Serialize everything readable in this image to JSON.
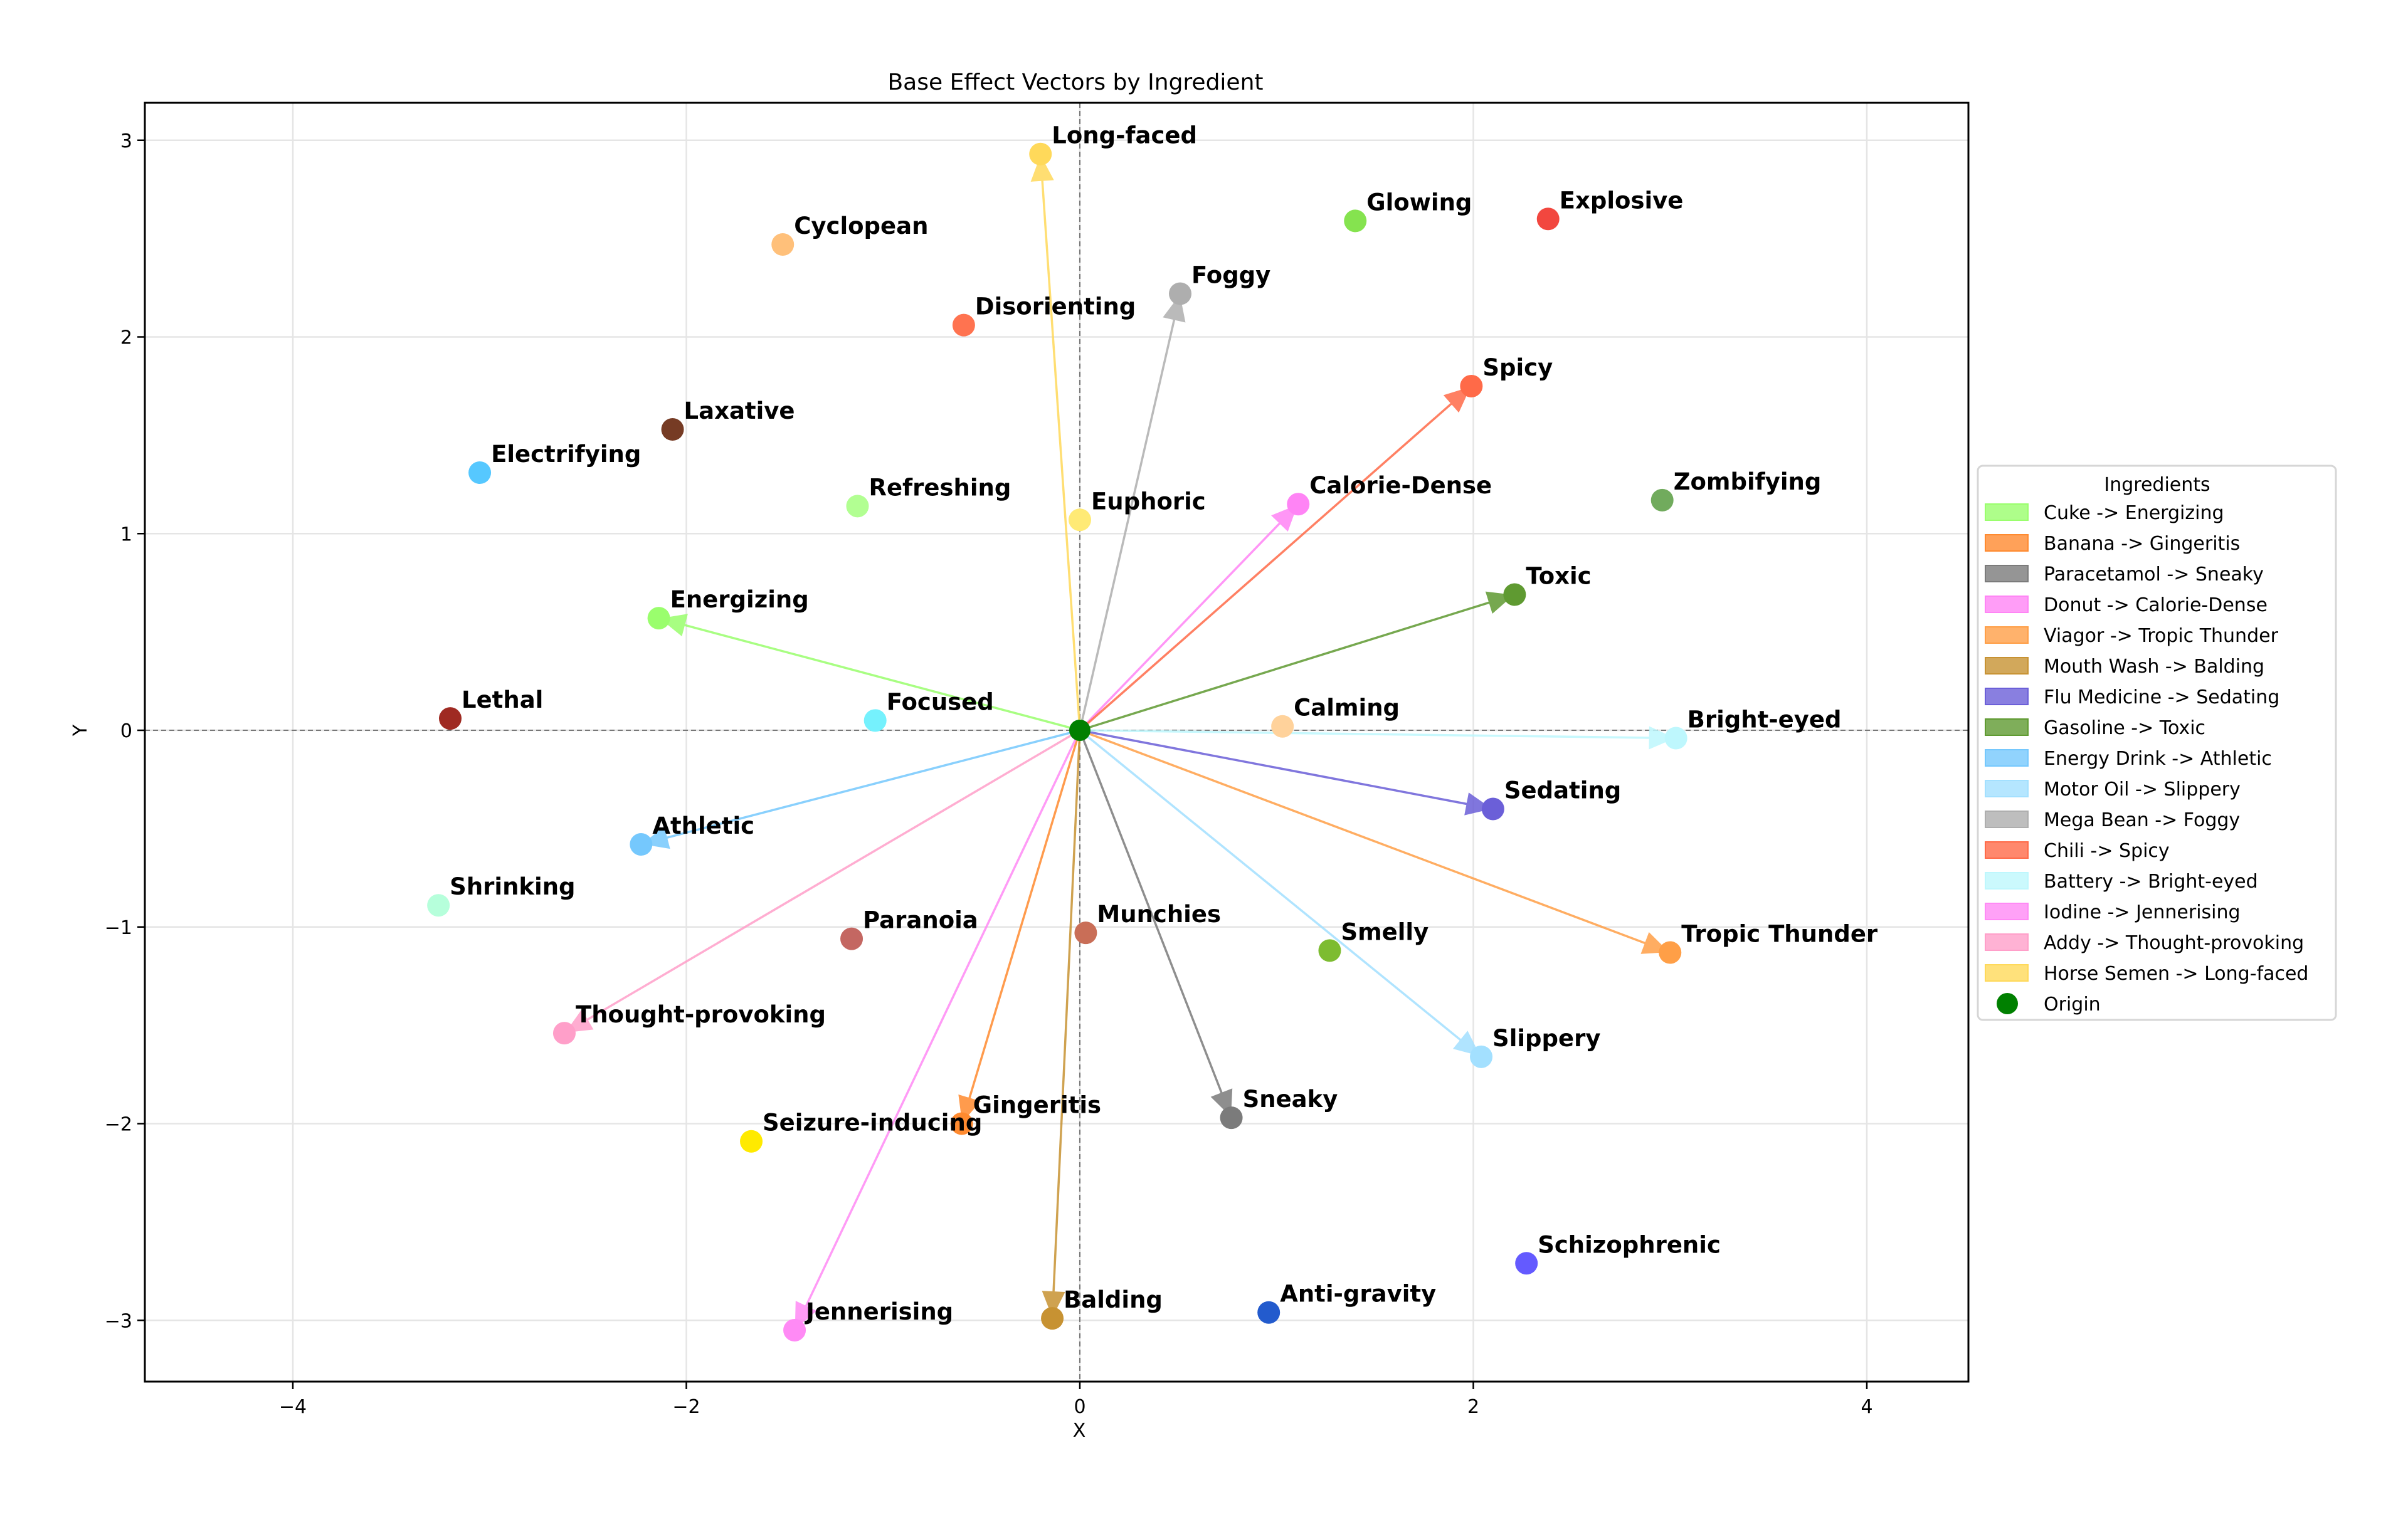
{
  "chart_data": {
    "type": "scatter",
    "title": "Base Effect Vectors by Ingredient",
    "xlabel": "X",
    "ylabel": "Y",
    "xlim": [
      -4.75,
      4.52
    ],
    "ylim": [
      -3.31,
      3.19
    ],
    "xticks": [
      -4,
      -2,
      0,
      2,
      4
    ],
    "yticks": [
      -3,
      -2,
      -1,
      0,
      1,
      2,
      3
    ],
    "grid": true,
    "legend_title": "Ingredients",
    "legend_position": "right, outside plot",
    "origin": {
      "label": "Origin",
      "x": 0,
      "y": 0,
      "color": "#008000"
    },
    "effects": [
      {
        "name": "Long-faced",
        "x": -0.2,
        "y": 2.93,
        "color": "#FFD95A"
      },
      {
        "name": "Cyclopean",
        "x": -1.51,
        "y": 2.47,
        "color": "#FFC07A"
      },
      {
        "name": "Glowing",
        "x": 1.4,
        "y": 2.59,
        "color": "#85E34F"
      },
      {
        "name": "Explosive",
        "x": 2.38,
        "y": 2.6,
        "color": "#F2473F"
      },
      {
        "name": "Foggy",
        "x": 0.51,
        "y": 2.22,
        "color": "#AEAEAE"
      },
      {
        "name": "Disorienting",
        "x": -0.59,
        "y": 2.06,
        "color": "#FF7350"
      },
      {
        "name": "Spicy",
        "x": 1.99,
        "y": 1.75,
        "color": "#FF6A48"
      },
      {
        "name": "Laxative",
        "x": -2.07,
        "y": 1.53,
        "color": "#763B24"
      },
      {
        "name": "Electrifying",
        "x": -3.05,
        "y": 1.31,
        "color": "#56C8FF"
      },
      {
        "name": "Refreshing",
        "x": -1.13,
        "y": 1.14,
        "color": "#B2FF92"
      },
      {
        "name": "Euphoric",
        "x": 0.0,
        "y": 1.07,
        "color": "#FFEA75"
      },
      {
        "name": "Calorie-Dense",
        "x": 1.11,
        "y": 1.15,
        "color": "#FF84F5"
      },
      {
        "name": "Zombifying",
        "x": 2.96,
        "y": 1.17,
        "color": "#71AB5D"
      },
      {
        "name": "Toxic",
        "x": 2.21,
        "y": 0.69,
        "color": "#5F9A31"
      },
      {
        "name": "Energizing",
        "x": -2.14,
        "y": 0.57,
        "color": "#9AFE6D"
      },
      {
        "name": "Lethal",
        "x": -3.2,
        "y": 0.06,
        "color": "#9F2A22"
      },
      {
        "name": "Focused",
        "x": -1.04,
        "y": 0.05,
        "color": "#75F1FD"
      },
      {
        "name": "Calming",
        "x": 1.03,
        "y": 0.02,
        "color": "#FFD29B"
      },
      {
        "name": "Bright-eyed",
        "x": 3.03,
        "y": -0.04,
        "color": "#BEF7FD"
      },
      {
        "name": "Sedating",
        "x": 2.1,
        "y": -0.4,
        "color": "#6B5FD8"
      },
      {
        "name": "Athletic",
        "x": -2.23,
        "y": -0.58,
        "color": "#75C8FD"
      },
      {
        "name": "Shrinking",
        "x": -3.26,
        "y": -0.89,
        "color": "#B6FFDB"
      },
      {
        "name": "Paranoia",
        "x": -1.16,
        "y": -1.06,
        "color": "#C46762"
      },
      {
        "name": "Munchies",
        "x": 0.03,
        "y": -1.03,
        "color": "#C96E57"
      },
      {
        "name": "Smelly",
        "x": 1.27,
        "y": -1.12,
        "color": "#7DBC31"
      },
      {
        "name": "Tropic Thunder",
        "x": 3.0,
        "y": -1.13,
        "color": "#FF9F47"
      },
      {
        "name": "Thought-provoking",
        "x": -2.62,
        "y": -1.54,
        "color": "#FF9FC9"
      },
      {
        "name": "Slippery",
        "x": 2.04,
        "y": -1.66,
        "color": "#A3E0FF"
      },
      {
        "name": "Sneaky",
        "x": 0.77,
        "y": -1.97,
        "color": "#7B7B7B"
      },
      {
        "name": "Gingeritis",
        "x": -0.6,
        "y": -2.0,
        "color": "#FF8A2F"
      },
      {
        "name": "Seizure-inducing",
        "x": -1.67,
        "y": -2.09,
        "color": "#FFEA00"
      },
      {
        "name": "Schizophrenic",
        "x": 2.27,
        "y": -2.71,
        "color": "#645AFF"
      },
      {
        "name": "Anti-gravity",
        "x": 0.96,
        "y": -2.96,
        "color": "#235BCD"
      },
      {
        "name": "Balding",
        "x": -0.14,
        "y": -2.99,
        "color": "#C79232"
      },
      {
        "name": "Jennerising",
        "x": -1.45,
        "y": -3.05,
        "color": "#FF8AF5"
      }
    ],
    "series": [
      {
        "name": "Cuke -> Energizing",
        "ingredient": "Cuke",
        "effect": "Energizing",
        "x": -2.14,
        "y": 0.57,
        "color": "#9AFE6D"
      },
      {
        "name": "Banana -> Gingeritis",
        "ingredient": "Banana",
        "effect": "Gingeritis",
        "x": -0.6,
        "y": -2.0,
        "color": "#FF8A2F"
      },
      {
        "name": "Paracetamol -> Sneaky",
        "ingredient": "Paracetamol",
        "effect": "Sneaky",
        "x": 0.77,
        "y": -1.97,
        "color": "#7B7B7B"
      },
      {
        "name": "Donut -> Calorie-Dense",
        "ingredient": "Donut",
        "effect": "Calorie-Dense",
        "x": 1.11,
        "y": 1.15,
        "color": "#FF84F5"
      },
      {
        "name": "Viagor -> Tropic Thunder",
        "ingredient": "Viagor",
        "effect": "Tropic Thunder",
        "x": 3.0,
        "y": -1.13,
        "color": "#FF9F47"
      },
      {
        "name": "Mouth Wash -> Balding",
        "ingredient": "Mouth Wash",
        "effect": "Balding",
        "x": -0.14,
        "y": -2.99,
        "color": "#C79232"
      },
      {
        "name": "Flu Medicine -> Sedating",
        "ingredient": "Flu Medicine",
        "effect": "Sedating",
        "x": 2.1,
        "y": -0.4,
        "color": "#6B5FD8"
      },
      {
        "name": "Gasoline -> Toxic",
        "ingredient": "Gasoline",
        "effect": "Toxic",
        "x": 2.21,
        "y": 0.69,
        "color": "#5F9A31"
      },
      {
        "name": "Energy Drink -> Athletic",
        "ingredient": "Energy Drink",
        "effect": "Athletic",
        "x": -2.23,
        "y": -0.58,
        "color": "#75C8FD"
      },
      {
        "name": "Motor Oil -> Slippery",
        "ingredient": "Motor Oil",
        "effect": "Slippery",
        "x": 2.04,
        "y": -1.66,
        "color": "#A3E0FF"
      },
      {
        "name": "Mega Bean -> Foggy",
        "ingredient": "Mega Bean",
        "effect": "Foggy",
        "x": 0.51,
        "y": 2.22,
        "color": "#AEAEAE"
      },
      {
        "name": "Chili -> Spicy",
        "ingredient": "Chili",
        "effect": "Spicy",
        "x": 1.99,
        "y": 1.75,
        "color": "#FF6A48"
      },
      {
        "name": "Battery -> Bright-eyed",
        "ingredient": "Battery",
        "effect": "Bright-eyed",
        "x": 3.03,
        "y": -0.04,
        "color": "#BEF7FD"
      },
      {
        "name": "Iodine -> Jennerising",
        "ingredient": "Iodine",
        "effect": "Jennerising",
        "x": -1.45,
        "y": -3.05,
        "color": "#FF8AF5"
      },
      {
        "name": "Addy -> Thought-provoking",
        "ingredient": "Addy",
        "effect": "Thought-provoking",
        "x": -2.62,
        "y": -1.54,
        "color": "#FF9FC9"
      },
      {
        "name": "Horse Semen -> Long-faced",
        "ingredient": "Horse Semen",
        "effect": "Long-faced",
        "x": -0.2,
        "y": 2.93,
        "color": "#FFD95A"
      }
    ]
  },
  "legend": {
    "title": "Ingredients",
    "items": [
      "Cuke -> Energizing",
      "Banana -> Gingeritis",
      "Paracetamol -> Sneaky",
      "Donut -> Calorie-Dense",
      "Viagor -> Tropic Thunder",
      "Mouth Wash -> Balding",
      "Flu Medicine -> Sedating",
      "Gasoline -> Toxic",
      "Energy Drink -> Athletic",
      "Motor Oil -> Slippery",
      "Mega Bean -> Foggy",
      "Chili -> Spicy",
      "Battery -> Bright-eyed",
      "Iodine -> Jennerising",
      "Addy -> Thought-provoking",
      "Horse Semen -> Long-faced",
      "Origin"
    ]
  }
}
